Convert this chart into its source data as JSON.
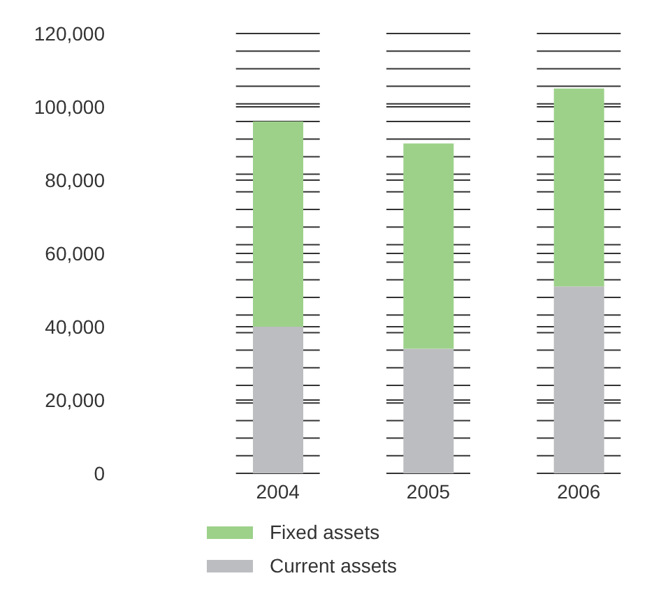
{
  "chart_data": {
    "type": "bar",
    "stacked": true,
    "categories": [
      "2004",
      "2005",
      "2006"
    ],
    "series": [
      {
        "name": "Current assets",
        "color": "#bcbdc0",
        "values": [
          40000,
          34000,
          51000
        ]
      },
      {
        "name": "Fixed assets",
        "color": "#9dd18a",
        "values": [
          56000,
          56000,
          54000
        ]
      }
    ],
    "ylim": [
      0,
      120000
    ],
    "yticks": [
      0,
      {
        "value": 4800,
        "label": null
      },
      {
        "value": 9600,
        "label": null
      },
      {
        "value": 14400,
        "label": null
      },
      {
        "value": 19200,
        "label": null
      },
      {
        "value": 20000,
        "label": "20,000"
      },
      {
        "value": 24000,
        "label": null
      },
      {
        "value": 28800,
        "label": null
      },
      {
        "value": 33600,
        "label": null
      },
      {
        "value": 38400,
        "label": null
      },
      {
        "value": 40000,
        "label": "40,000"
      },
      {
        "value": 43200,
        "label": null
      },
      {
        "value": 48000,
        "label": null
      },
      {
        "value": 52800,
        "label": null
      },
      {
        "value": 57600,
        "label": null
      },
      {
        "value": 60000,
        "label": "60,000"
      },
      {
        "value": 62400,
        "label": null
      },
      {
        "value": 67200,
        "label": null
      },
      {
        "value": 72000,
        "label": null
      },
      {
        "value": 76800,
        "label": null
      },
      {
        "value": 80000,
        "label": "80,000"
      },
      {
        "value": 81600,
        "label": null
      },
      {
        "value": 86400,
        "label": null
      },
      {
        "value": 91200,
        "label": null
      },
      {
        "value": 96000,
        "label": null
      },
      {
        "value": 100000,
        "label": "100,000"
      },
      {
        "value": 100800,
        "label": null
      },
      {
        "value": 105600,
        "label": null
      },
      {
        "value": 110400,
        "label": null
      },
      {
        "value": 115200,
        "label": null
      },
      {
        "value": 120000,
        "label": "120,000"
      }
    ],
    "grid": "y",
    "legend": "bottom"
  }
}
